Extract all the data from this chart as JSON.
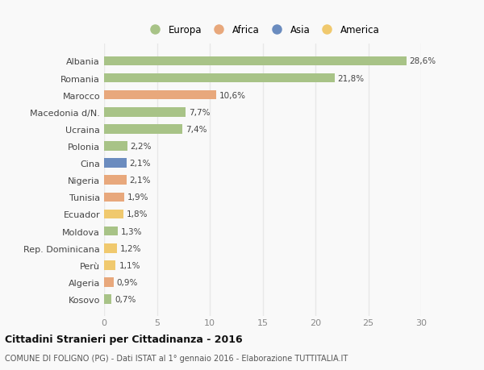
{
  "countries": [
    "Albania",
    "Romania",
    "Marocco",
    "Macedonia d/N.",
    "Ucraina",
    "Polonia",
    "Cina",
    "Nigeria",
    "Tunisia",
    "Ecuador",
    "Moldova",
    "Rep. Dominicana",
    "Perù",
    "Algeria",
    "Kosovo"
  ],
  "values": [
    28.6,
    21.8,
    10.6,
    7.7,
    7.4,
    2.2,
    2.1,
    2.1,
    1.9,
    1.8,
    1.3,
    1.2,
    1.1,
    0.9,
    0.7
  ],
  "labels": [
    "28,6%",
    "21,8%",
    "10,6%",
    "7,7%",
    "7,4%",
    "2,2%",
    "2,1%",
    "2,1%",
    "1,9%",
    "1,8%",
    "1,3%",
    "1,2%",
    "1,1%",
    "0,9%",
    "0,7%"
  ],
  "continents": [
    "Europa",
    "Europa",
    "Africa",
    "Europa",
    "Europa",
    "Europa",
    "Asia",
    "Africa",
    "Africa",
    "America",
    "Europa",
    "America",
    "America",
    "Africa",
    "Europa"
  ],
  "colors": {
    "Europa": "#a8c387",
    "Africa": "#e8a87c",
    "Asia": "#6b8cbf",
    "America": "#f0c96e"
  },
  "legend_order": [
    "Europa",
    "Africa",
    "Asia",
    "America"
  ],
  "xlim": [
    0,
    30
  ],
  "xticks": [
    0,
    5,
    10,
    15,
    20,
    25,
    30
  ],
  "title": "Cittadini Stranieri per Cittadinanza - 2016",
  "subtitle": "COMUNE DI FOLIGNO (PG) - Dati ISTAT al 1° gennaio 2016 - Elaborazione TUTTITALIA.IT",
  "background_color": "#f9f9f9",
  "grid_color": "#e8e8e8",
  "bar_height": 0.55
}
